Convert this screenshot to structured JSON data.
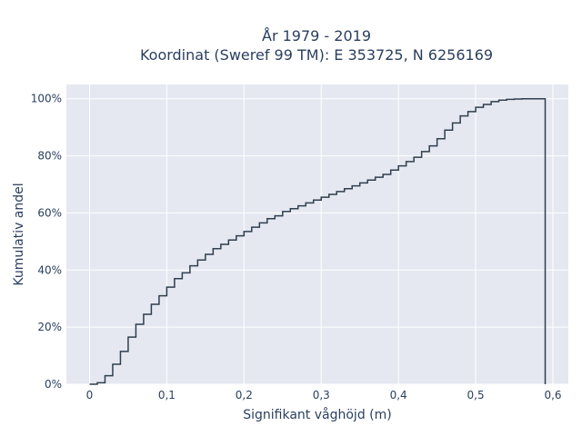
{
  "chart_data": {
    "type": "line",
    "title_line1": "År 1979 - 2019",
    "title_line2": "Koordinat (Sweref 99 TM): E 353725, N 6256169",
    "xlabel": "Signifikant våghöjd (m)",
    "ylabel": "Kumulativ andel",
    "xlim": [
      -0.03,
      0.62
    ],
    "ylim": [
      0,
      1.05
    ],
    "x_ticks": [
      {
        "value": 0,
        "label": "0"
      },
      {
        "value": 0.1,
        "label": "0,1"
      },
      {
        "value": 0.2,
        "label": "0,2"
      },
      {
        "value": 0.3,
        "label": "0,3"
      },
      {
        "value": 0.4,
        "label": "0,4"
      },
      {
        "value": 0.5,
        "label": "0,5"
      },
      {
        "value": 0.6,
        "label": "0,6"
      }
    ],
    "y_ticks": [
      {
        "value": 0,
        "label": "0%"
      },
      {
        "value": 0.2,
        "label": "20%"
      },
      {
        "value": 0.4,
        "label": "40%"
      },
      {
        "value": 0.6,
        "label": "60%"
      },
      {
        "value": 0.8,
        "label": "80%"
      },
      {
        "value": 1.0,
        "label": "100%"
      }
    ],
    "grid": true,
    "line_shape": "step",
    "series": [
      {
        "color": "#2f3e4e",
        "x": [
          0,
          0.01,
          0.02,
          0.03,
          0.04,
          0.05,
          0.06,
          0.07,
          0.08,
          0.09,
          0.1,
          0.11,
          0.12,
          0.13,
          0.14,
          0.15,
          0.16,
          0.17,
          0.18,
          0.19,
          0.2,
          0.21,
          0.22,
          0.23,
          0.24,
          0.25,
          0.26,
          0.27,
          0.28,
          0.29,
          0.3,
          0.31,
          0.32,
          0.33,
          0.34,
          0.35,
          0.36,
          0.37,
          0.38,
          0.39,
          0.4,
          0.41,
          0.42,
          0.43,
          0.44,
          0.45,
          0.46,
          0.47,
          0.48,
          0.49,
          0.5,
          0.51,
          0.52,
          0.53,
          0.54,
          0.55,
          0.56,
          0.57,
          0.58,
          0.59
        ],
        "y": [
          0.0,
          0.005,
          0.03,
          0.07,
          0.115,
          0.165,
          0.21,
          0.245,
          0.28,
          0.31,
          0.34,
          0.37,
          0.39,
          0.415,
          0.435,
          0.455,
          0.475,
          0.49,
          0.505,
          0.52,
          0.535,
          0.55,
          0.565,
          0.58,
          0.59,
          0.605,
          0.615,
          0.625,
          0.635,
          0.645,
          0.655,
          0.665,
          0.675,
          0.685,
          0.695,
          0.705,
          0.715,
          0.725,
          0.735,
          0.75,
          0.765,
          0.78,
          0.795,
          0.815,
          0.835,
          0.86,
          0.89,
          0.915,
          0.94,
          0.955,
          0.97,
          0.98,
          0.99,
          0.995,
          0.998,
          0.999,
          1.0,
          1.0,
          1.0,
          1.0
        ]
      }
    ]
  }
}
